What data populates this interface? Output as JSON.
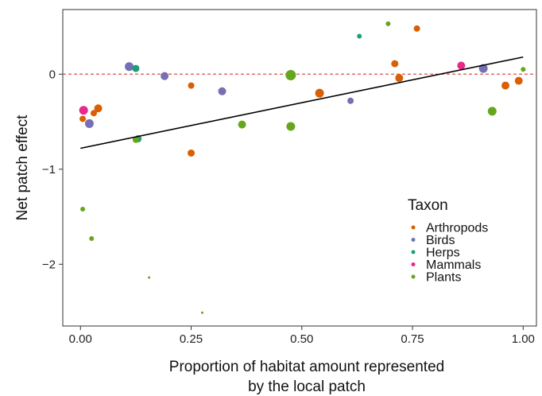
{
  "chart_data": {
    "type": "scatter",
    "title": "",
    "xlabel": [
      "Proportion of habitat amount represented",
      "by the local patch"
    ],
    "ylabel": "Net patch effect",
    "xlim": [
      -0.04,
      1.03
    ],
    "ylim": [
      -2.65,
      0.68
    ],
    "x_ticks": [
      0.0,
      0.25,
      0.5,
      0.75,
      1.0
    ],
    "x_tick_labels": [
      "0.00",
      "0.25",
      "0.50",
      "0.75",
      "1.00"
    ],
    "y_ticks": [
      -2,
      -1,
      0
    ],
    "y_tick_labels": [
      "−2",
      "−1",
      "0"
    ],
    "grid": false,
    "reference_line": {
      "y": 0,
      "color": "#d9534f",
      "style": "dashed"
    },
    "fit_line": {
      "x": [
        0.0,
        1.0
      ],
      "y": [
        -0.78,
        0.18
      ],
      "color": "#000000"
    },
    "legend": {
      "title": "Taxon",
      "position": "bottom-right",
      "entries": [
        {
          "label": "Arthropods",
          "color": "#d95f02"
        },
        {
          "label": "Birds",
          "color": "#7570b3"
        },
        {
          "label": "Herps",
          "color": "#1b9e77"
        },
        {
          "label": "Mammals",
          "color": "#e7298a"
        },
        {
          "label": "Plants",
          "color": "#66a61e"
        }
      ]
    },
    "series": [
      {
        "name": "Arthropods",
        "color": "#d95f02",
        "points": [
          {
            "x": 0.005,
            "y": -0.47,
            "size": 4
          },
          {
            "x": 0.03,
            "y": -0.41,
            "size": 4
          },
          {
            "x": 0.04,
            "y": -0.36,
            "size": 5
          },
          {
            "x": 0.25,
            "y": -0.12,
            "size": 4
          },
          {
            "x": 0.25,
            "y": -0.83,
            "size": 4.5
          },
          {
            "x": 0.54,
            "y": -0.2,
            "size": 5.5
          },
          {
            "x": 0.71,
            "y": 0.11,
            "size": 4.5
          },
          {
            "x": 0.72,
            "y": -0.04,
            "size": 5
          },
          {
            "x": 0.76,
            "y": 0.48,
            "size": 4
          },
          {
            "x": 0.96,
            "y": -0.12,
            "size": 5
          },
          {
            "x": 0.99,
            "y": -0.07,
            "size": 5
          }
        ]
      },
      {
        "name": "Birds",
        "color": "#7570b3",
        "points": [
          {
            "x": 0.02,
            "y": -0.52,
            "size": 5.5
          },
          {
            "x": 0.11,
            "y": 0.08,
            "size": 5.5
          },
          {
            "x": 0.19,
            "y": -0.02,
            "size": 5
          },
          {
            "x": 0.32,
            "y": -0.18,
            "size": 5
          },
          {
            "x": 0.61,
            "y": -0.28,
            "size": 4
          },
          {
            "x": 0.91,
            "y": 0.06,
            "size": 5.5
          }
        ]
      },
      {
        "name": "Herps",
        "color": "#1b9e77",
        "points": [
          {
            "x": 0.125,
            "y": 0.06,
            "size": 4.5
          },
          {
            "x": 0.13,
            "y": -0.68,
            "size": 4.5
          },
          {
            "x": 0.63,
            "y": 0.4,
            "size": 3
          }
        ]
      },
      {
        "name": "Mammals",
        "color": "#e7298a",
        "points": [
          {
            "x": 0.007,
            "y": -0.38,
            "size": 5.5
          },
          {
            "x": 0.86,
            "y": 0.09,
            "size": 5
          }
        ]
      },
      {
        "name": "Plants",
        "color": "#66a61e",
        "points": [
          {
            "x": 0.005,
            "y": -1.42,
            "size": 3
          },
          {
            "x": 0.025,
            "y": -1.73,
            "size": 3
          },
          {
            "x": 0.125,
            "y": -0.69,
            "size": 4
          },
          {
            "x": 0.155,
            "y": -2.14,
            "size": 1.5
          },
          {
            "x": 0.275,
            "y": -2.51,
            "size": 1.5
          },
          {
            "x": 0.365,
            "y": -0.53,
            "size": 5
          },
          {
            "x": 0.475,
            "y": -0.01,
            "size": 6.5
          },
          {
            "x": 0.475,
            "y": -0.55,
            "size": 5.5
          },
          {
            "x": 0.695,
            "y": 0.53,
            "size": 3
          },
          {
            "x": 0.93,
            "y": -0.39,
            "size": 5.5
          },
          {
            "x": 1.0,
            "y": 0.05,
            "size": 3
          }
        ]
      }
    ]
  }
}
